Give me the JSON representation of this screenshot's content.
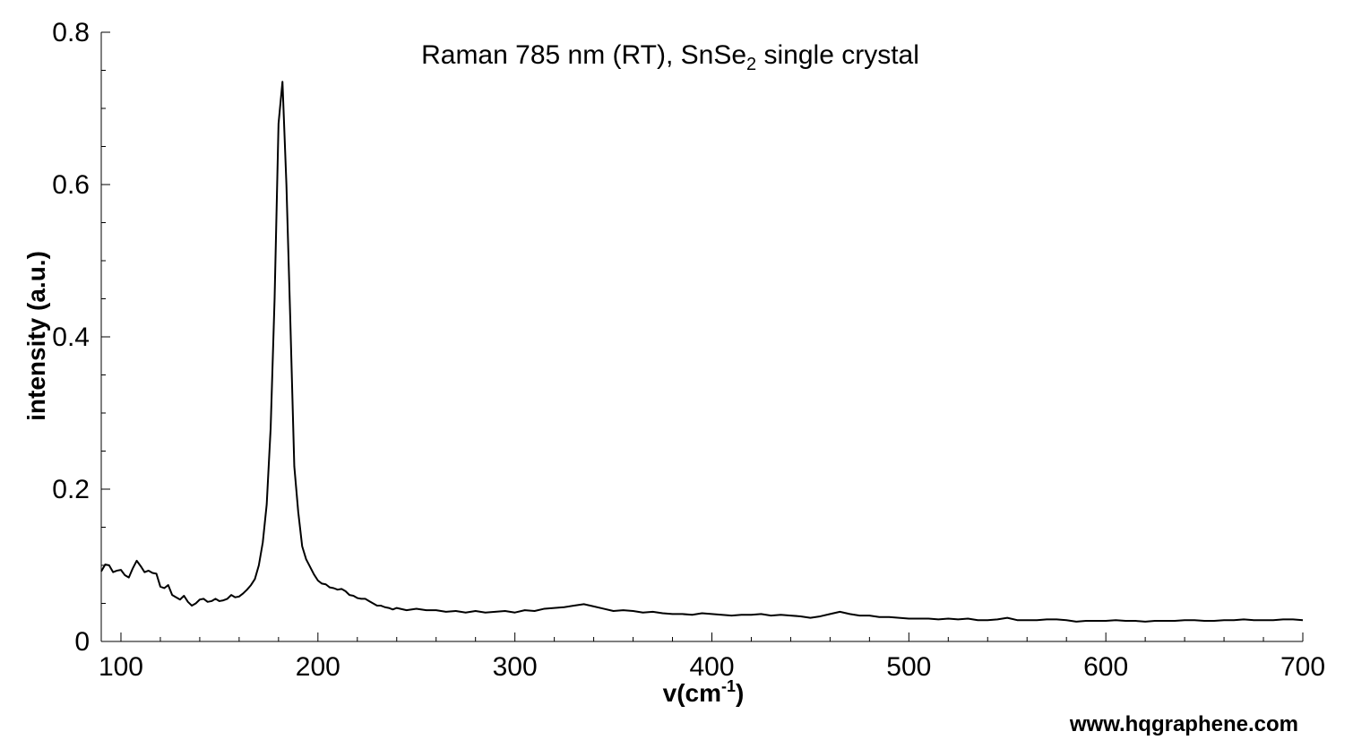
{
  "chart_data": {
    "type": "line",
    "title": {
      "main": "Raman 785 nm (RT), SnSe",
      "sub": "2",
      "rest": " single crystal"
    },
    "xlabel": {
      "main": "v(cm",
      "sup": "-1",
      "rest": ")"
    },
    "ylabel": "intensity (a.u.)",
    "xlim": [
      90,
      700
    ],
    "ylim": [
      0,
      0.8
    ],
    "x_ticks": [
      100,
      200,
      300,
      400,
      500,
      600,
      700
    ],
    "y_ticks": [
      0,
      0.2,
      0.4,
      0.6,
      0.8
    ],
    "y_tick_labels": [
      "0",
      "0.2",
      "0.4",
      "0.6",
      "0.8"
    ],
    "grid": false,
    "series": [
      {
        "color": "#000000",
        "points": [
          [
            90,
            0.092
          ],
          [
            92,
            0.101
          ],
          [
            94,
            0.1
          ],
          [
            96,
            0.091
          ],
          [
            98,
            0.093
          ],
          [
            100,
            0.094
          ],
          [
            102,
            0.087
          ],
          [
            104,
            0.084
          ],
          [
            106,
            0.096
          ],
          [
            108,
            0.106
          ],
          [
            110,
            0.099
          ],
          [
            112,
            0.091
          ],
          [
            114,
            0.093
          ],
          [
            116,
            0.09
          ],
          [
            118,
            0.089
          ],
          [
            120,
            0.072
          ],
          [
            122,
            0.07
          ],
          [
            124,
            0.074
          ],
          [
            126,
            0.061
          ],
          [
            128,
            0.058
          ],
          [
            130,
            0.055
          ],
          [
            132,
            0.06
          ],
          [
            134,
            0.052
          ],
          [
            136,
            0.047
          ],
          [
            138,
            0.05
          ],
          [
            140,
            0.055
          ],
          [
            142,
            0.056
          ],
          [
            144,
            0.052
          ],
          [
            146,
            0.053
          ],
          [
            148,
            0.056
          ],
          [
            150,
            0.053
          ],
          [
            152,
            0.054
          ],
          [
            154,
            0.056
          ],
          [
            156,
            0.061
          ],
          [
            158,
            0.058
          ],
          [
            160,
            0.059
          ],
          [
            162,
            0.063
          ],
          [
            164,
            0.068
          ],
          [
            166,
            0.074
          ],
          [
            168,
            0.082
          ],
          [
            170,
            0.1
          ],
          [
            172,
            0.13
          ],
          [
            174,
            0.18
          ],
          [
            176,
            0.28
          ],
          [
            178,
            0.45
          ],
          [
            180,
            0.68
          ],
          [
            182,
            0.735
          ],
          [
            184,
            0.6
          ],
          [
            186,
            0.42
          ],
          [
            188,
            0.23
          ],
          [
            190,
            0.17
          ],
          [
            192,
            0.125
          ],
          [
            194,
            0.108
          ],
          [
            196,
            0.098
          ],
          [
            198,
            0.088
          ],
          [
            200,
            0.08
          ],
          [
            202,
            0.076
          ],
          [
            204,
            0.075
          ],
          [
            206,
            0.071
          ],
          [
            208,
            0.07
          ],
          [
            210,
            0.068
          ],
          [
            212,
            0.069
          ],
          [
            214,
            0.066
          ],
          [
            216,
            0.061
          ],
          [
            218,
            0.06
          ],
          [
            220,
            0.057
          ],
          [
            222,
            0.056
          ],
          [
            224,
            0.056
          ],
          [
            226,
            0.053
          ],
          [
            228,
            0.05
          ],
          [
            230,
            0.047
          ],
          [
            232,
            0.047
          ],
          [
            234,
            0.045
          ],
          [
            236,
            0.044
          ],
          [
            238,
            0.042
          ],
          [
            240,
            0.044
          ],
          [
            245,
            0.041
          ],
          [
            250,
            0.043
          ],
          [
            255,
            0.041
          ],
          [
            260,
            0.041
          ],
          [
            265,
            0.039
          ],
          [
            270,
            0.04
          ],
          [
            275,
            0.038
          ],
          [
            280,
            0.04
          ],
          [
            285,
            0.038
          ],
          [
            290,
            0.039
          ],
          [
            295,
            0.04
          ],
          [
            300,
            0.038
          ],
          [
            305,
            0.041
          ],
          [
            310,
            0.04
          ],
          [
            315,
            0.043
          ],
          [
            320,
            0.044
          ],
          [
            325,
            0.045
          ],
          [
            330,
            0.047
          ],
          [
            335,
            0.049
          ],
          [
            340,
            0.046
          ],
          [
            345,
            0.043
          ],
          [
            350,
            0.04
          ],
          [
            355,
            0.041
          ],
          [
            360,
            0.04
          ],
          [
            365,
            0.038
          ],
          [
            370,
            0.039
          ],
          [
            375,
            0.037
          ],
          [
            380,
            0.036
          ],
          [
            385,
            0.036
          ],
          [
            390,
            0.035
          ],
          [
            395,
            0.037
          ],
          [
            400,
            0.036
          ],
          [
            405,
            0.035
          ],
          [
            410,
            0.034
          ],
          [
            415,
            0.035
          ],
          [
            420,
            0.035
          ],
          [
            425,
            0.036
          ],
          [
            430,
            0.034
          ],
          [
            435,
            0.035
          ],
          [
            440,
            0.034
          ],
          [
            445,
            0.033
          ],
          [
            450,
            0.031
          ],
          [
            455,
            0.033
          ],
          [
            460,
            0.036
          ],
          [
            465,
            0.039
          ],
          [
            470,
            0.036
          ],
          [
            475,
            0.034
          ],
          [
            480,
            0.034
          ],
          [
            485,
            0.032
          ],
          [
            490,
            0.032
          ],
          [
            495,
            0.031
          ],
          [
            500,
            0.03
          ],
          [
            505,
            0.03
          ],
          [
            510,
            0.03
          ],
          [
            515,
            0.029
          ],
          [
            520,
            0.03
          ],
          [
            525,
            0.029
          ],
          [
            530,
            0.03
          ],
          [
            535,
            0.028
          ],
          [
            540,
            0.028
          ],
          [
            545,
            0.029
          ],
          [
            550,
            0.031
          ],
          [
            555,
            0.028
          ],
          [
            560,
            0.028
          ],
          [
            565,
            0.028
          ],
          [
            570,
            0.029
          ],
          [
            575,
            0.029
          ],
          [
            580,
            0.028
          ],
          [
            585,
            0.026
          ],
          [
            590,
            0.027
          ],
          [
            595,
            0.027
          ],
          [
            600,
            0.027
          ],
          [
            605,
            0.028
          ],
          [
            610,
            0.027
          ],
          [
            615,
            0.027
          ],
          [
            620,
            0.026
          ],
          [
            625,
            0.027
          ],
          [
            630,
            0.027
          ],
          [
            635,
            0.027
          ],
          [
            640,
            0.028
          ],
          [
            645,
            0.028
          ],
          [
            650,
            0.027
          ],
          [
            655,
            0.027
          ],
          [
            660,
            0.028
          ],
          [
            665,
            0.028
          ],
          [
            670,
            0.029
          ],
          [
            675,
            0.028
          ],
          [
            680,
            0.028
          ],
          [
            685,
            0.028
          ],
          [
            690,
            0.029
          ],
          [
            695,
            0.029
          ],
          [
            700,
            0.028
          ]
        ]
      }
    ]
  },
  "watermark": "www.hqgraphene.com"
}
